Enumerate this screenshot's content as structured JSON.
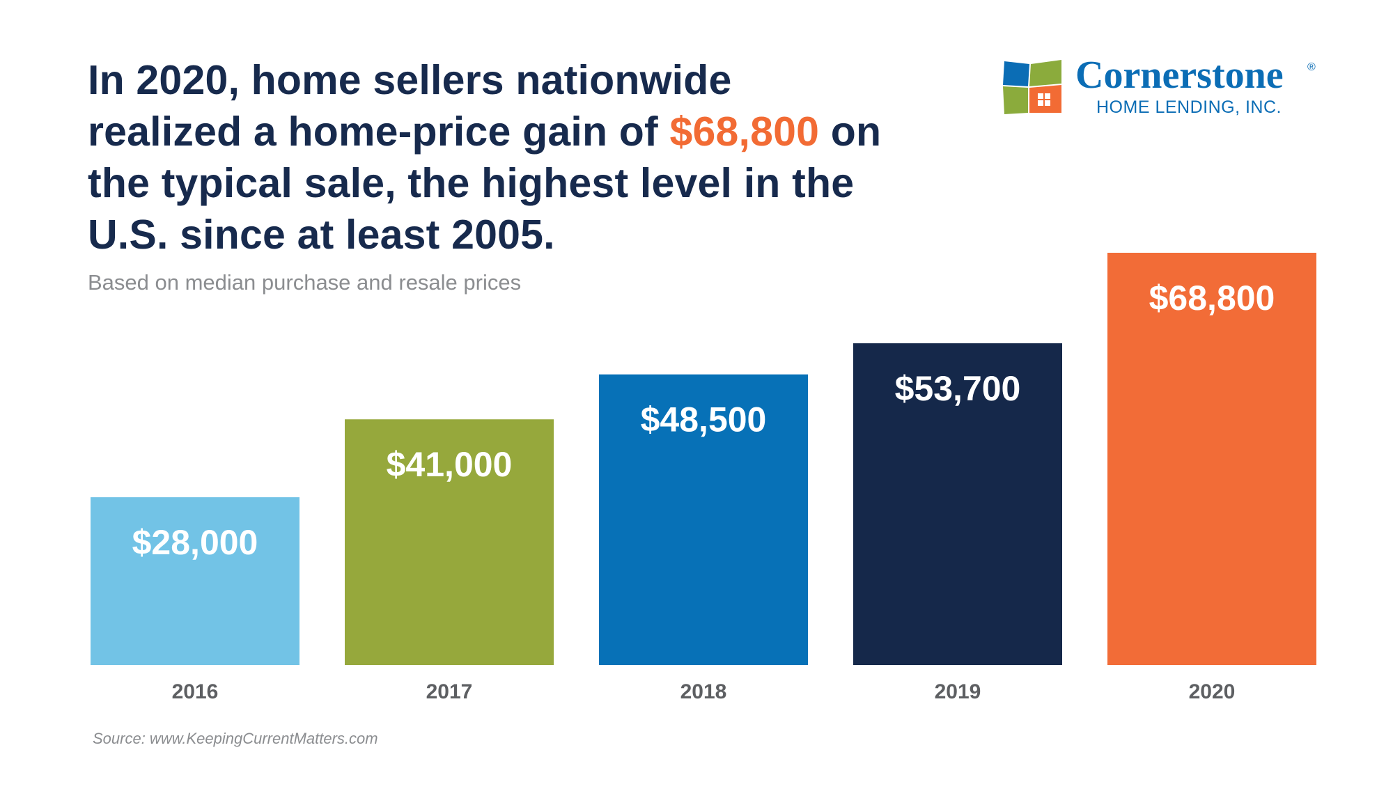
{
  "headline": {
    "before": "In 2020, home sellers nationwide realized a home-price gain of ",
    "highlight": "$68,800",
    "after": " on the typical sale, the highest level in the U.S. since at least 2005."
  },
  "subtitle": "Based on median purchase and resale prices",
  "source": "Source: www.KeepingCurrentMatters.com",
  "logo": {
    "name": "Cornerstone",
    "registered": "®",
    "sub": "HOME LENDING, INC."
  },
  "colors": {
    "headline": "#172a4d",
    "highlight": "#f26b34",
    "brand": "#0b6db5",
    "subtitle": "#8b8d90"
  },
  "chart_data": {
    "type": "bar",
    "title": "",
    "xlabel": "",
    "ylabel": "",
    "categories": [
      "2016",
      "2017",
      "2018",
      "2019",
      "2020"
    ],
    "values": [
      28000,
      41000,
      48500,
      53700,
      68800
    ],
    "value_labels": [
      "$28,000",
      "$41,000",
      "$48,500",
      "$53,700",
      "$68,800"
    ],
    "bar_colors": [
      "#72c3e6",
      "#96a83c",
      "#0771b7",
      "#15284a",
      "#f26c37"
    ],
    "ylim": [
      0,
      68800
    ],
    "grid": false,
    "legend": "none"
  }
}
